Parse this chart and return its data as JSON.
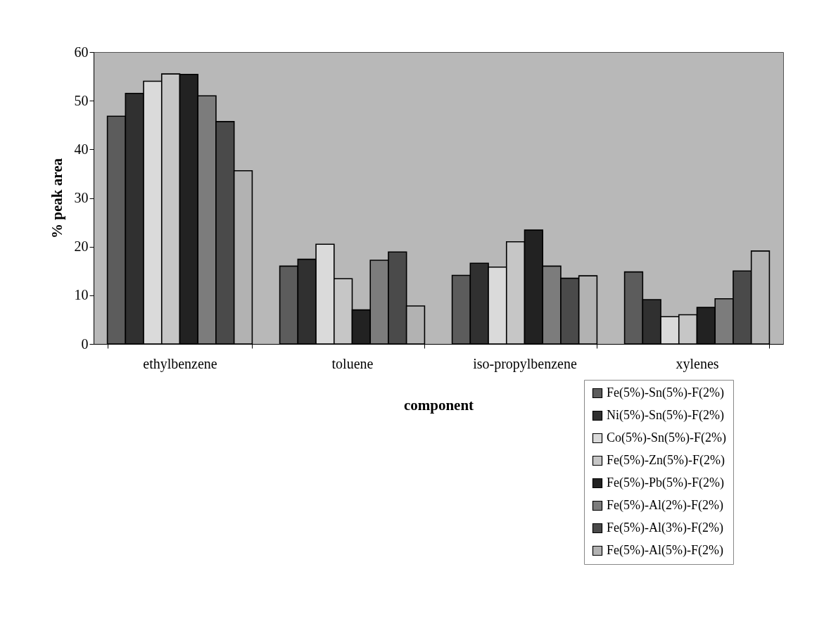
{
  "chart_data": {
    "type": "bar",
    "xlabel": "component",
    "ylabel": "% peak area",
    "categories": [
      "ethylbenzene",
      "toluene",
      "iso-propylbenzene",
      "xylenes"
    ],
    "ylim": [
      0,
      60
    ],
    "yticks": [
      0,
      10,
      20,
      30,
      40,
      50,
      60
    ],
    "legend": "bottom right",
    "series": [
      {
        "name": "Fe(5%)-Sn(5%)-F(2%)",
        "color": "#5c5c5c",
        "values": [
          46.8,
          16,
          14.1,
          14.8
        ]
      },
      {
        "name": "Ni(5%)-Sn(5%)-F(2%)",
        "color": "#303030",
        "values": [
          51.5,
          17.4,
          16.6,
          9.1
        ]
      },
      {
        "name": "Co(5%)-Sn(5%)-F(2%)",
        "color": "#dadada",
        "values": [
          54,
          20.5,
          15.8,
          5.6
        ]
      },
      {
        "name": "Fe(5%)-Zn(5%)-F(2%)",
        "color": "#c6c6c6",
        "values": [
          55.5,
          13.4,
          21,
          6
        ]
      },
      {
        "name": "Fe(5%)-Pb(5%)-F(2%)",
        "color": "#222222",
        "values": [
          55.4,
          7,
          23.4,
          7.5
        ]
      },
      {
        "name": "Fe(5%)-Al(2%)-F(2%)",
        "color": "#7c7c7c",
        "values": [
          51,
          17.2,
          16,
          9.3
        ]
      },
      {
        "name": "Fe(5%)-Al(3%)-F(2%)",
        "color": "#4a4a4a",
        "values": [
          45.7,
          18.9,
          13.5,
          15
        ]
      },
      {
        "name": "Fe(5%)-Al(5%)-F(2%)",
        "color": "#b2b2b2",
        "values": [
          35.6,
          7.8,
          14,
          19.1
        ]
      }
    ]
  }
}
